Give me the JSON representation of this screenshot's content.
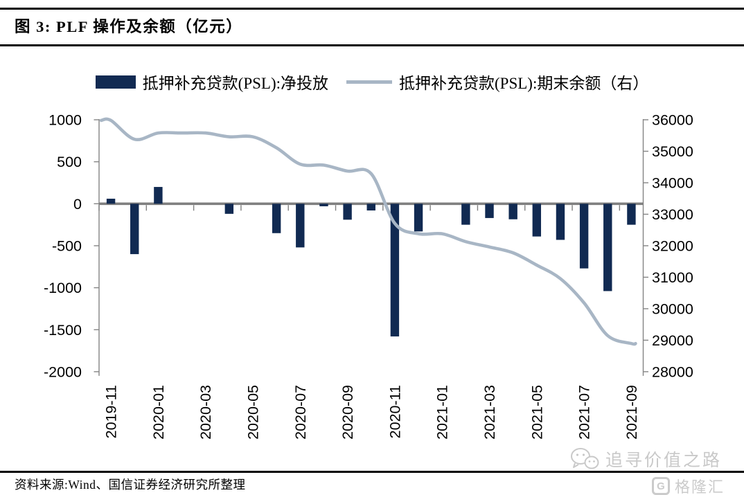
{
  "page": {
    "title": "图 3: PLF 操作及余额（亿元）",
    "source_note": "资料来源:Wind、国信证券经济研究所整理",
    "watermark_text": "追寻价值之路",
    "brand_text": "格隆汇",
    "brand_icon_letter": "G"
  },
  "legend": {
    "items": [
      {
        "label": "抵押补充贷款(PSL):净投放",
        "marker": "bar-swatch",
        "color": "#112a52"
      },
      {
        "label": "抵押补充贷款(PSL):期末余额（右）",
        "marker": "line-swatch",
        "color": "#a8b6c5"
      }
    ]
  },
  "chart_data": {
    "type": "bar+line",
    "title": "PLF 操作及余额（亿元）",
    "categories": [
      "2019-11",
      "2019-12",
      "2020-01",
      "2020-02",
      "2020-03",
      "2020-04",
      "2020-05",
      "2020-06",
      "2020-07",
      "2020-08",
      "2020-09",
      "2020-10",
      "2020-11",
      "2020-12",
      "2021-01",
      "2021-02",
      "2021-03",
      "2021-04",
      "2021-05",
      "2021-06",
      "2021-07",
      "2021-08",
      "2021-09"
    ],
    "x_tick_labels": [
      "2019-11",
      "2020-01",
      "2020-03",
      "2020-05",
      "2020-07",
      "2020-09",
      "2020-11",
      "2021-01",
      "2021-03",
      "2021-05",
      "2021-07",
      "2021-09"
    ],
    "series": [
      {
        "name": "抵押补充贷款(PSL):净投放",
        "type": "bar",
        "y_axis": "left",
        "color": "#112a52",
        "values": [
          60,
          -600,
          200,
          0,
          0,
          -120,
          0,
          -350,
          -520,
          -30,
          -190,
          -80,
          -1580,
          -330,
          0,
          -250,
          -170,
          -185,
          -390,
          -430,
          -770,
          -1040,
          -250
        ]
      },
      {
        "name": "抵押补充贷款(PSL):期末余额（右）",
        "type": "line",
        "y_axis": "right",
        "smooth": true,
        "color": "#a8b6c5",
        "values": [
          35980,
          35380,
          35580,
          35580,
          35580,
          35460,
          35460,
          35110,
          34590,
          34560,
          34370,
          34290,
          32710,
          32380,
          32380,
          32130,
          31960,
          31775,
          31385,
          30955,
          30185,
          29145,
          28895
        ]
      }
    ],
    "left_axis": {
      "min": -2000,
      "max": 1000,
      "step": 500,
      "tick_labels": [
        "1000",
        "500",
        "0",
        "-500",
        "-1000",
        "-1500",
        "-2000"
      ]
    },
    "right_axis": {
      "min": 28000,
      "max": 36000,
      "step": 1000,
      "tick_labels": [
        "36000",
        "35000",
        "34000",
        "33000",
        "32000",
        "31000",
        "30000",
        "29000",
        "28000"
      ]
    },
    "grid": false,
    "legend_position": "top",
    "colors": {
      "zero_line": "#7f7f7f",
      "spine": "#848484",
      "tick_text": "#000000"
    }
  }
}
